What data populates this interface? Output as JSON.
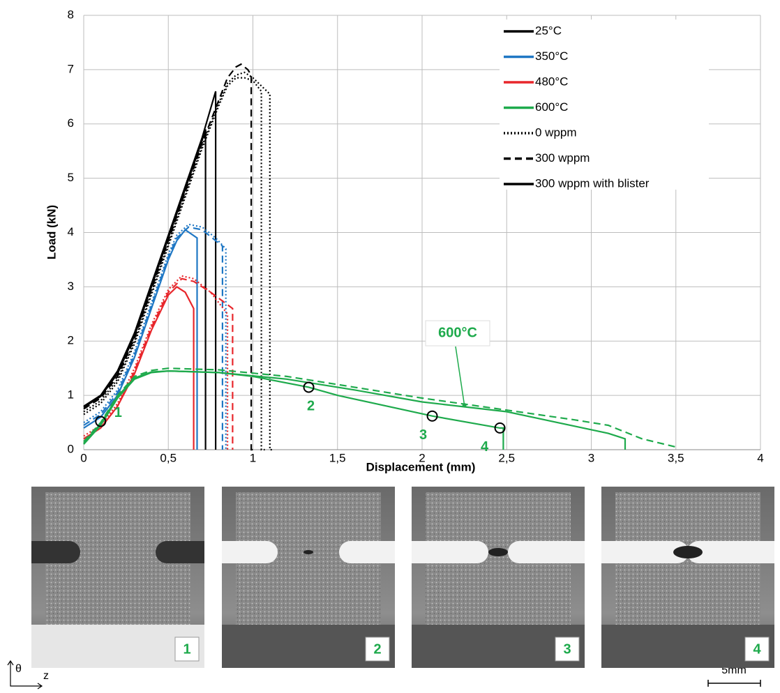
{
  "chart_data": {
    "type": "line",
    "x_label": "Displacement (mm)",
    "y_label": "Load (kN)",
    "xlim": [
      0,
      4
    ],
    "ylim": [
      0,
      8
    ],
    "xticks": [
      0,
      {
        "value": 0.5,
        "label": "0,5"
      },
      1,
      {
        "value": 1.5,
        "label": "1,5"
      },
      2,
      {
        "value": 2.5,
        "label": "2,5"
      },
      3,
      {
        "value": 3.5,
        "label": "3,5"
      },
      4
    ],
    "yticks": [
      0,
      1,
      2,
      3,
      4,
      5,
      6,
      7,
      8
    ],
    "grid": true,
    "legend": [
      {
        "name": "25°C",
        "color": "#000000",
        "dash": "solid"
      },
      {
        "name": "350°C",
        "color": "#1f77c4",
        "dash": "solid"
      },
      {
        "name": "480°C",
        "color": "#e8262b",
        "dash": "solid"
      },
      {
        "name": "600°C",
        "color": "#1eaa4c",
        "dash": "solid"
      },
      {
        "name": "0 wppm",
        "color": "#000000",
        "dash": "dotted"
      },
      {
        "name": "300 wppm",
        "color": "#000000",
        "dash": "dashed"
      },
      {
        "name": "300 wppm with blister",
        "color": "#000000",
        "dash": "solid"
      }
    ],
    "series": [
      {
        "color": "#000000",
        "dash": "dotted",
        "x": [
          0,
          0.1,
          0.2,
          0.3,
          0.4,
          0.5,
          0.6,
          0.7,
          0.8,
          0.85,
          0.9,
          0.95,
          1.0,
          1.05,
          1.1,
          1.1,
          1.12
        ],
        "values": [
          0.7,
          0.9,
          1.3,
          2.0,
          2.9,
          3.8,
          4.7,
          5.6,
          6.4,
          6.75,
          6.9,
          6.95,
          6.85,
          6.7,
          6.55,
          0,
          0
        ]
      },
      {
        "color": "#000000",
        "dash": "dotted",
        "x": [
          0,
          0.1,
          0.2,
          0.3,
          0.4,
          0.5,
          0.6,
          0.7,
          0.8,
          0.85,
          0.9,
          0.95,
          1.0,
          1.05,
          1.05,
          1.07
        ],
        "values": [
          0.65,
          0.85,
          1.25,
          1.95,
          2.85,
          3.75,
          4.65,
          5.55,
          6.35,
          6.7,
          6.85,
          6.85,
          6.8,
          6.6,
          0,
          0
        ]
      },
      {
        "color": "#000000",
        "dash": "dashed",
        "x": [
          0,
          0.1,
          0.2,
          0.3,
          0.4,
          0.5,
          0.6,
          0.7,
          0.8,
          0.85,
          0.9,
          0.93,
          0.97,
          0.99,
          0.99,
          1.02
        ],
        "values": [
          0.75,
          0.95,
          1.35,
          2.05,
          2.95,
          3.85,
          4.75,
          5.65,
          6.45,
          6.85,
          7.05,
          7.1,
          7.0,
          6.9,
          0,
          0
        ]
      },
      {
        "color": "#000000",
        "dash": "solid",
        "x": [
          0,
          0.1,
          0.2,
          0.3,
          0.4,
          0.5,
          0.6,
          0.7,
          0.78,
          0.78
        ],
        "values": [
          0.8,
          1.0,
          1.45,
          2.15,
          3.05,
          3.95,
          4.85,
          5.75,
          6.6,
          0
        ]
      },
      {
        "color": "#000000",
        "dash": "solid",
        "x": [
          0,
          0.1,
          0.2,
          0.3,
          0.4,
          0.5,
          0.6,
          0.7,
          0.72,
          0.72
        ],
        "values": [
          0.78,
          0.98,
          1.4,
          2.1,
          3.0,
          3.9,
          4.8,
          5.7,
          5.9,
          0
        ]
      },
      {
        "color": "#1f77c4",
        "dash": "dotted",
        "x": [
          0,
          0.1,
          0.2,
          0.3,
          0.4,
          0.5,
          0.55,
          0.62,
          0.7,
          0.78,
          0.84,
          0.84
        ],
        "values": [
          0.5,
          0.7,
          1.1,
          1.8,
          2.7,
          3.6,
          3.95,
          4.15,
          4.1,
          3.9,
          3.7,
          0
        ]
      },
      {
        "color": "#1f77c4",
        "dash": "dashed",
        "x": [
          0,
          0.1,
          0.2,
          0.3,
          0.4,
          0.5,
          0.55,
          0.62,
          0.7,
          0.78,
          0.82,
          0.82
        ],
        "values": [
          0.45,
          0.65,
          1.05,
          1.75,
          2.65,
          3.55,
          3.9,
          4.1,
          4.05,
          3.85,
          3.75,
          0
        ]
      },
      {
        "color": "#1f77c4",
        "dash": "solid",
        "x": [
          0,
          0.1,
          0.2,
          0.3,
          0.4,
          0.5,
          0.55,
          0.6,
          0.67,
          0.67
        ],
        "values": [
          0.4,
          0.6,
          1.0,
          1.7,
          2.6,
          3.5,
          3.85,
          4.05,
          3.9,
          0
        ]
      },
      {
        "color": "#e8262b",
        "dash": "dotted",
        "x": [
          0,
          0.1,
          0.2,
          0.3,
          0.4,
          0.5,
          0.58,
          0.65,
          0.75,
          0.85,
          0.85
        ],
        "values": [
          0.25,
          0.45,
          0.85,
          1.5,
          2.3,
          2.95,
          3.2,
          3.15,
          2.9,
          2.5,
          0
        ]
      },
      {
        "color": "#e8262b",
        "dash": "dashed",
        "x": [
          0,
          0.1,
          0.2,
          0.3,
          0.4,
          0.5,
          0.58,
          0.65,
          0.75,
          0.88,
          0.88
        ],
        "values": [
          0.2,
          0.4,
          0.8,
          1.45,
          2.25,
          2.9,
          3.15,
          3.1,
          2.9,
          2.6,
          0
        ]
      },
      {
        "color": "#e8262b",
        "dash": "solid",
        "x": [
          0,
          0.1,
          0.2,
          0.3,
          0.4,
          0.5,
          0.55,
          0.6,
          0.65,
          0.65
        ],
        "values": [
          0.2,
          0.4,
          0.8,
          1.4,
          2.2,
          2.85,
          3.0,
          2.9,
          2.6,
          0
        ]
      },
      {
        "color": "#1eaa4c",
        "dash": "solid",
        "x": [
          0,
          0.1,
          0.2,
          0.3,
          0.4,
          0.5,
          0.8,
          1.0,
          1.33,
          1.5,
          2.06,
          2.46,
          2.48,
          2.48
        ],
        "values": [
          0.1,
          0.45,
          0.95,
          1.3,
          1.42,
          1.45,
          1.42,
          1.35,
          1.15,
          1.0,
          0.62,
          0.4,
          0.4,
          0
        ]
      },
      {
        "color": "#1eaa4c",
        "dash": "solid",
        "x": [
          0,
          0.1,
          0.2,
          0.3,
          0.4,
          0.5,
          0.8,
          1.2,
          1.6,
          2.0,
          2.5,
          2.8,
          3.1,
          3.2,
          3.2
        ],
        "values": [
          0.12,
          0.48,
          0.98,
          1.32,
          1.43,
          1.45,
          1.42,
          1.3,
          1.1,
          0.88,
          0.7,
          0.5,
          0.3,
          0.2,
          0
        ]
      },
      {
        "color": "#1eaa4c",
        "dash": "dashed",
        "x": [
          0,
          0.1,
          0.2,
          0.3,
          0.4,
          0.5,
          0.8,
          1.2,
          1.6,
          2.0,
          2.5,
          2.9,
          3.1,
          3.3,
          3.5,
          3.5
        ],
        "values": [
          0.15,
          0.5,
          1.0,
          1.35,
          1.46,
          1.5,
          1.47,
          1.35,
          1.15,
          0.95,
          0.73,
          0.55,
          0.45,
          0.2,
          0.05,
          0
        ]
      }
    ],
    "markers": {
      "x": [
        0.1,
        1.33,
        2.06,
        2.46
      ],
      "values": [
        0.52,
        1.15,
        0.62,
        0.4
      ],
      "labels": [
        "1",
        "2",
        "3",
        "4"
      ],
      "color": "#1eaa4c"
    },
    "annotation": {
      "text": "600°C",
      "x": 2.25,
      "y": 0.82,
      "color": "#1eaa4c"
    }
  },
  "photos": {
    "labels": [
      "1",
      "2",
      "3",
      "4"
    ],
    "axis_theta": "θ",
    "axis_z": "z",
    "scale_bar": "5mm"
  }
}
